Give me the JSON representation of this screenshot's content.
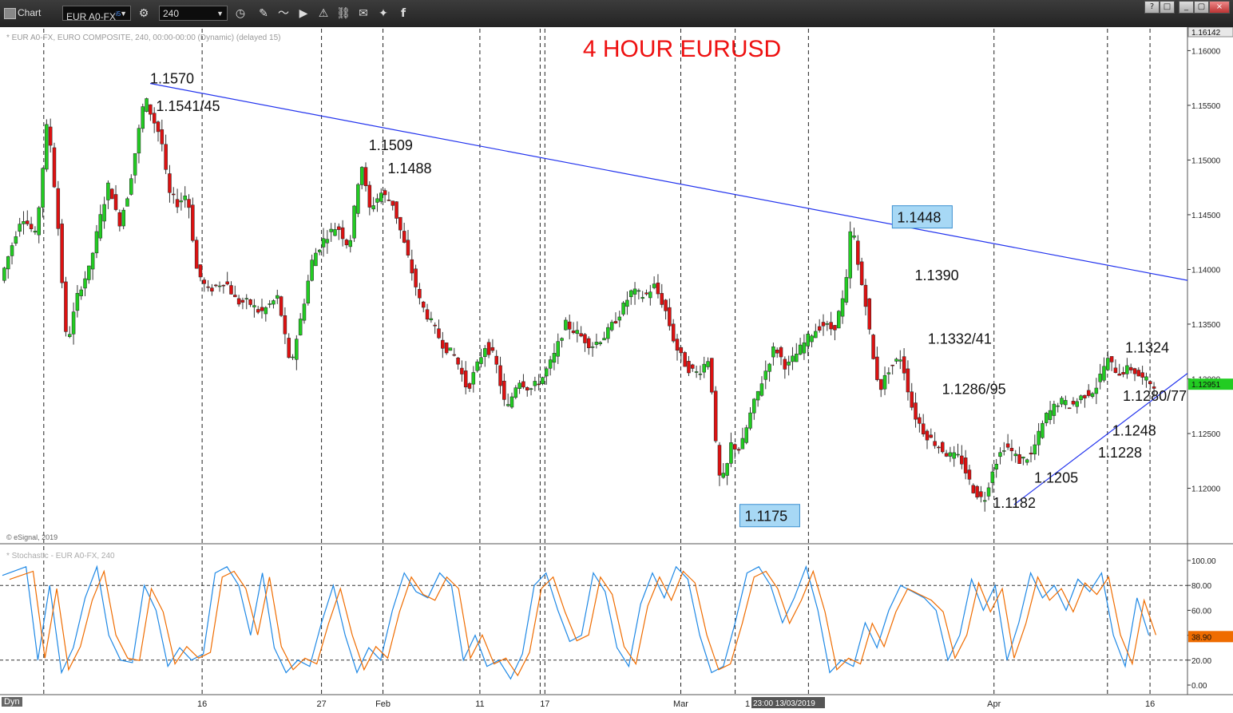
{
  "window": {
    "title": "Chart",
    "symbol": "EUR A0-FX",
    "symbol_superscript": "i5",
    "interval": "240",
    "window_buttons": [
      "?",
      "□",
      "_",
      "▢",
      "×"
    ]
  },
  "toolbar_icons": [
    "settings-gear-icon",
    "clock-icon",
    "pencil-icon",
    "line-chart-icon",
    "play-icon",
    "alert-icon",
    "link-icon",
    "comment-icon",
    "twitter-icon",
    "facebook-icon"
  ],
  "main_panel": {
    "info_line": "* EUR A0-FX, EURO COMPOSITE, 240, 00:00-00:00 (Dynamic) (delayed 15)",
    "copyright": "© eSignal, 2019",
    "last_price_tag": "1.12951",
    "top_price_tag": "1.16142"
  },
  "stoch_panel": {
    "info_line": "* Stochastic - EUR A0-FX, 240",
    "value_tag": "38.90",
    "ticks": [
      "100.00",
      "80.00",
      "60.00",
      "40.00",
      "20.00",
      "0.00"
    ]
  },
  "footer": {
    "dyn_label": "Dyn",
    "crosshair_time": "23:00 13/03/2019",
    "crosshair_time_prefix": "1"
  },
  "colors": {
    "up": "#22cc22",
    "down": "#dd1111",
    "trendline": "#2233ee",
    "title": "#ee1111",
    "stoch_k": "#1e88e5",
    "stoch_d": "#ef6c00",
    "highlight_box": "#a7d8f5"
  },
  "chart_data": {
    "type": "candlestick",
    "title": "4 HOUR EURUSD",
    "y_ticks": [
      "1.16000",
      "1.15500",
      "1.15000",
      "1.14500",
      "1.14000",
      "1.13500",
      "1.13000",
      "1.12500",
      "1.12000"
    ],
    "ylim": [
      1.115,
      1.162
    ],
    "x_ticks": [
      {
        "label": "16",
        "pos": 0.169
      },
      {
        "label": "27",
        "pos": 0.27
      },
      {
        "label": "Feb",
        "pos": 0.322
      },
      {
        "label": "11",
        "pos": 0.404
      },
      {
        "label": "17",
        "pos": 0.459
      },
      {
        "label": "Mar",
        "pos": 0.574
      },
      {
        "label": "Apr",
        "pos": 0.839
      },
      {
        "label": "16",
        "pos": 0.971
      }
    ],
    "annotations": [
      {
        "text": "1.1570",
        "t": 0.125,
        "y": 1.157
      },
      {
        "text": "1.1541/45",
        "t": 0.13,
        "y": 1.1545
      },
      {
        "text": "1.1509",
        "t": 0.31,
        "y": 1.1509
      },
      {
        "text": "1.1488",
        "t": 0.326,
        "y": 1.1488
      },
      {
        "text": "1.1448",
        "t": 0.757,
        "y": 1.1448,
        "boxed": true
      },
      {
        "text": "1.1390",
        "t": 0.772,
        "y": 1.139
      },
      {
        "text": "1.1332/41",
        "t": 0.783,
        "y": 1.1332
      },
      {
        "text": "1.1286/95",
        "t": 0.795,
        "y": 1.1286
      },
      {
        "text": "1.1175",
        "t": 0.628,
        "y": 1.1175,
        "boxed": true
      },
      {
        "text": "1.1182",
        "t": 0.838,
        "y": 1.1182
      },
      {
        "text": "1.1205",
        "t": 0.873,
        "y": 1.1205
      },
      {
        "text": "1.1228",
        "t": 0.927,
        "y": 1.1228
      },
      {
        "text": "1.1248",
        "t": 0.939,
        "y": 1.1248
      },
      {
        "text": "1.1280/77",
        "t": 0.948,
        "y": 1.128
      },
      {
        "text": "1.1324",
        "t": 0.95,
        "y": 1.1324
      }
    ],
    "trendlines": [
      {
        "name": "downtrend",
        "t1": 0.125,
        "y1": 1.157,
        "t2": 1.0,
        "y2": 1.139
      },
      {
        "name": "uptrend",
        "t1": 0.856,
        "y1": 1.1185,
        "t2": 1.0,
        "y2": 1.1305
      }
    ],
    "path_points": [
      [
        0.0,
        1.139
      ],
      [
        0.018,
        1.145
      ],
      [
        0.03,
        1.143
      ],
      [
        0.04,
        1.154
      ],
      [
        0.048,
        1.145
      ],
      [
        0.056,
        1.133
      ],
      [
        0.066,
        1.138
      ],
      [
        0.075,
        1.14
      ],
      [
        0.085,
        1.145
      ],
      [
        0.092,
        1.148
      ],
      [
        0.1,
        1.144
      ],
      [
        0.108,
        1.147
      ],
      [
        0.116,
        1.152
      ],
      [
        0.122,
        1.1558
      ],
      [
        0.128,
        1.154
      ],
      [
        0.136,
        1.152
      ],
      [
        0.142,
        1.147
      ],
      [
        0.15,
        1.146
      ],
      [
        0.158,
        1.147
      ],
      [
        0.166,
        1.14
      ],
      [
        0.175,
        1.138
      ],
      [
        0.19,
        1.139
      ],
      [
        0.2,
        1.137
      ],
      [
        0.21,
        1.137
      ],
      [
        0.22,
        1.136
      ],
      [
        0.235,
        1.1375
      ],
      [
        0.245,
        1.131
      ],
      [
        0.255,
        1.136
      ],
      [
        0.264,
        1.141
      ],
      [
        0.275,
        1.143
      ],
      [
        0.285,
        1.144
      ],
      [
        0.295,
        1.142
      ],
      [
        0.305,
        1.15
      ],
      [
        0.312,
        1.1455
      ],
      [
        0.322,
        1.147
      ],
      [
        0.332,
        1.146
      ],
      [
        0.345,
        1.141
      ],
      [
        0.355,
        1.137
      ],
      [
        0.365,
        1.135
      ],
      [
        0.375,
        1.133
      ],
      [
        0.385,
        1.132
      ],
      [
        0.395,
        1.129
      ],
      [
        0.41,
        1.133
      ],
      [
        0.418,
        1.132
      ],
      [
        0.428,
        1.127
      ],
      [
        0.438,
        1.13
      ],
      [
        0.448,
        1.129
      ],
      [
        0.458,
        1.13
      ],
      [
        0.468,
        1.132
      ],
      [
        0.478,
        1.135
      ],
      [
        0.49,
        1.134
      ],
      [
        0.5,
        1.133
      ],
      [
        0.512,
        1.134
      ],
      [
        0.524,
        1.136
      ],
      [
        0.534,
        1.138
      ],
      [
        0.545,
        1.1375
      ],
      [
        0.553,
        1.1385
      ],
      [
        0.562,
        1.1365
      ],
      [
        0.571,
        1.133
      ],
      [
        0.581,
        1.131
      ],
      [
        0.59,
        1.1305
      ],
      [
        0.6,
        1.132
      ],
      [
        0.607,
        1.121
      ],
      [
        0.613,
        1.121
      ],
      [
        0.618,
        1.124
      ],
      [
        0.626,
        1.1235
      ],
      [
        0.635,
        1.127
      ],
      [
        0.645,
        1.13
      ],
      [
        0.655,
        1.133
      ],
      [
        0.665,
        1.131
      ],
      [
        0.675,
        1.1325
      ],
      [
        0.685,
        1.134
      ],
      [
        0.695,
        1.135
      ],
      [
        0.705,
        1.1345
      ],
      [
        0.715,
        1.138
      ],
      [
        0.72,
        1.1446
      ],
      [
        0.726,
        1.14
      ],
      [
        0.732,
        1.137
      ],
      [
        0.738,
        1.132
      ],
      [
        0.744,
        1.129
      ],
      [
        0.752,
        1.131
      ],
      [
        0.762,
        1.132
      ],
      [
        0.772,
        1.127
      ],
      [
        0.782,
        1.125
      ],
      [
        0.792,
        1.124
      ],
      [
        0.802,
        1.123
      ],
      [
        0.812,
        1.1228
      ],
      [
        0.822,
        1.12
      ],
      [
        0.832,
        1.1188
      ],
      [
        0.84,
        1.122
      ],
      [
        0.85,
        1.124
      ],
      [
        0.862,
        1.1225
      ],
      [
        0.872,
        1.123
      ],
      [
        0.884,
        1.1265
      ],
      [
        0.896,
        1.128
      ],
      [
        0.906,
        1.1275
      ],
      [
        0.916,
        1.1285
      ],
      [
        0.926,
        1.129
      ],
      [
        0.936,
        1.1318
      ],
      [
        0.946,
        1.1305
      ],
      [
        0.956,
        1.131
      ],
      [
        0.966,
        1.13
      ],
      [
        0.976,
        1.1295
      ]
    ],
    "stochastic": {
      "k_points": [
        [
          0,
          88
        ],
        [
          0.02,
          95
        ],
        [
          0.03,
          20
        ],
        [
          0.04,
          80
        ],
        [
          0.05,
          10
        ],
        [
          0.06,
          30
        ],
        [
          0.07,
          70
        ],
        [
          0.08,
          95
        ],
        [
          0.09,
          40
        ],
        [
          0.1,
          20
        ],
        [
          0.11,
          18
        ],
        [
          0.12,
          80
        ],
        [
          0.13,
          60
        ],
        [
          0.14,
          15
        ],
        [
          0.15,
          30
        ],
        [
          0.16,
          20
        ],
        [
          0.17,
          25
        ],
        [
          0.18,
          90
        ],
        [
          0.19,
          95
        ],
        [
          0.2,
          80
        ],
        [
          0.21,
          40
        ],
        [
          0.22,
          90
        ],
        [
          0.23,
          30
        ],
        [
          0.24,
          10
        ],
        [
          0.25,
          20
        ],
        [
          0.26,
          15
        ],
        [
          0.27,
          50
        ],
        [
          0.28,
          80
        ],
        [
          0.29,
          40
        ],
        [
          0.3,
          10
        ],
        [
          0.31,
          30
        ],
        [
          0.32,
          20
        ],
        [
          0.33,
          60
        ],
        [
          0.34,
          90
        ],
        [
          0.35,
          75
        ],
        [
          0.36,
          70
        ],
        [
          0.37,
          90
        ],
        [
          0.38,
          80
        ],
        [
          0.39,
          20
        ],
        [
          0.4,
          40
        ],
        [
          0.41,
          15
        ],
        [
          0.42,
          20
        ],
        [
          0.43,
          5
        ],
        [
          0.44,
          25
        ],
        [
          0.45,
          80
        ],
        [
          0.46,
          90
        ],
        [
          0.47,
          60
        ],
        [
          0.48,
          35
        ],
        [
          0.49,
          40
        ],
        [
          0.5,
          90
        ],
        [
          0.51,
          75
        ],
        [
          0.52,
          30
        ],
        [
          0.53,
          15
        ],
        [
          0.54,
          65
        ],
        [
          0.55,
          90
        ],
        [
          0.56,
          70
        ],
        [
          0.57,
          95
        ],
        [
          0.58,
          85
        ],
        [
          0.59,
          40
        ],
        [
          0.6,
          10
        ],
        [
          0.61,
          15
        ],
        [
          0.62,
          50
        ],
        [
          0.63,
          90
        ],
        [
          0.64,
          95
        ],
        [
          0.65,
          80
        ],
        [
          0.66,
          50
        ],
        [
          0.67,
          70
        ],
        [
          0.68,
          95
        ],
        [
          0.69,
          60
        ],
        [
          0.7,
          10
        ],
        [
          0.71,
          20
        ],
        [
          0.72,
          15
        ],
        [
          0.73,
          50
        ],
        [
          0.74,
          30
        ],
        [
          0.75,
          60
        ],
        [
          0.76,
          80
        ],
        [
          0.77,
          75
        ],
        [
          0.78,
          70
        ],
        [
          0.79,
          60
        ],
        [
          0.8,
          20
        ],
        [
          0.81,
          40
        ],
        [
          0.82,
          85
        ],
        [
          0.83,
          60
        ],
        [
          0.84,
          80
        ],
        [
          0.85,
          20
        ],
        [
          0.86,
          50
        ],
        [
          0.87,
          90
        ],
        [
          0.88,
          70
        ],
        [
          0.89,
          80
        ],
        [
          0.9,
          60
        ],
        [
          0.91,
          85
        ],
        [
          0.92,
          75
        ],
        [
          0.93,
          90
        ],
        [
          0.94,
          40
        ],
        [
          0.95,
          15
        ],
        [
          0.96,
          70
        ],
        [
          0.97,
          40
        ]
      ],
      "d_offset": 0.006
    }
  }
}
